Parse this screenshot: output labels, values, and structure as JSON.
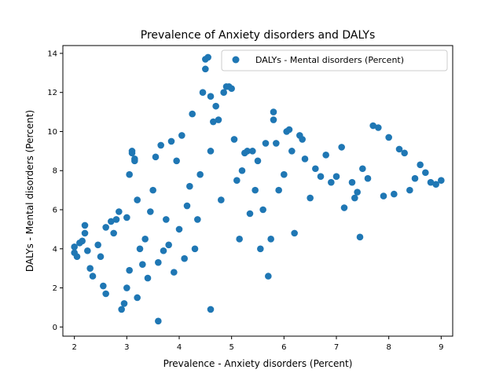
{
  "chart_data": {
    "type": "scatter",
    "title": "Prevalence of Anxiety disorders and DALYs",
    "xlabel": "Prevalence - Anxiety disorders (Percent)",
    "ylabel": "DALYs - Mental disorders (Percent)",
    "xlim": [
      1.78,
      9.22
    ],
    "ylim": [
      -0.47,
      14.4
    ],
    "xticks": [
      2,
      3,
      4,
      5,
      6,
      7,
      8,
      9
    ],
    "yticks": [
      0,
      2,
      4,
      6,
      8,
      10,
      12,
      14
    ],
    "grid": false,
    "legend_position": "top-right",
    "marker_color": "#1f77b4",
    "series": [
      {
        "name": "DALYs - Mental disorders (Percent)",
        "color": "#1f77b4",
        "points": [
          [
            2.0,
            3.8
          ],
          [
            2.0,
            4.1
          ],
          [
            2.05,
            3.6
          ],
          [
            2.1,
            4.3
          ],
          [
            2.15,
            4.4
          ],
          [
            2.2,
            5.2
          ],
          [
            2.2,
            4.8
          ],
          [
            2.25,
            3.9
          ],
          [
            2.3,
            3.0
          ],
          [
            2.35,
            2.6
          ],
          [
            2.45,
            4.2
          ],
          [
            2.5,
            3.6
          ],
          [
            2.55,
            2.1
          ],
          [
            2.6,
            1.7
          ],
          [
            2.6,
            5.1
          ],
          [
            2.7,
            5.4
          ],
          [
            2.75,
            4.8
          ],
          [
            2.8,
            5.5
          ],
          [
            2.85,
            5.9
          ],
          [
            2.9,
            0.9
          ],
          [
            2.95,
            1.2
          ],
          [
            3.0,
            5.6
          ],
          [
            3.0,
            2.0
          ],
          [
            3.05,
            2.9
          ],
          [
            3.05,
            7.8
          ],
          [
            3.1,
            8.9
          ],
          [
            3.1,
            9.0
          ],
          [
            3.15,
            8.6
          ],
          [
            3.15,
            8.5
          ],
          [
            3.2,
            6.5
          ],
          [
            3.2,
            1.5
          ],
          [
            3.25,
            4.0
          ],
          [
            3.3,
            3.2
          ],
          [
            3.35,
            4.5
          ],
          [
            3.4,
            2.5
          ],
          [
            3.45,
            5.9
          ],
          [
            3.5,
            7.0
          ],
          [
            3.55,
            8.7
          ],
          [
            3.6,
            0.3
          ],
          [
            3.6,
            3.3
          ],
          [
            3.65,
            9.3
          ],
          [
            3.7,
            3.9
          ],
          [
            3.75,
            5.5
          ],
          [
            3.8,
            4.2
          ],
          [
            3.85,
            9.5
          ],
          [
            3.9,
            2.8
          ],
          [
            3.95,
            8.5
          ],
          [
            4.0,
            5.0
          ],
          [
            4.05,
            9.8
          ],
          [
            4.1,
            3.5
          ],
          [
            4.15,
            6.2
          ],
          [
            4.2,
            7.2
          ],
          [
            4.25,
            10.9
          ],
          [
            4.3,
            4.0
          ],
          [
            4.35,
            5.5
          ],
          [
            4.4,
            7.8
          ],
          [
            4.45,
            12.0
          ],
          [
            4.5,
            13.2
          ],
          [
            4.5,
            13.7
          ],
          [
            4.55,
            13.8
          ],
          [
            4.6,
            11.8
          ],
          [
            4.6,
            9.0
          ],
          [
            4.6,
            0.9
          ],
          [
            4.65,
            10.5
          ],
          [
            4.7,
            11.3
          ],
          [
            4.75,
            10.6
          ],
          [
            4.8,
            6.5
          ],
          [
            4.85,
            12.0
          ],
          [
            4.9,
            12.3
          ],
          [
            4.95,
            12.3
          ],
          [
            5.0,
            12.2
          ],
          [
            5.05,
            9.6
          ],
          [
            5.1,
            7.5
          ],
          [
            5.15,
            4.5
          ],
          [
            5.2,
            8.0
          ],
          [
            5.25,
            8.9
          ],
          [
            5.3,
            9.0
          ],
          [
            5.35,
            5.8
          ],
          [
            5.4,
            9.0
          ],
          [
            5.45,
            7.0
          ],
          [
            5.5,
            8.5
          ],
          [
            5.55,
            4.0
          ],
          [
            5.6,
            6.0
          ],
          [
            5.65,
            9.4
          ],
          [
            5.7,
            2.6
          ],
          [
            5.75,
            4.5
          ],
          [
            5.8,
            10.6
          ],
          [
            5.8,
            11.0
          ],
          [
            5.85,
            9.4
          ],
          [
            5.9,
            7.0
          ],
          [
            6.0,
            7.8
          ],
          [
            6.05,
            10.0
          ],
          [
            6.1,
            10.1
          ],
          [
            6.15,
            9.0
          ],
          [
            6.2,
            4.8
          ],
          [
            6.3,
            9.8
          ],
          [
            6.35,
            9.6
          ],
          [
            6.4,
            8.6
          ],
          [
            6.5,
            6.6
          ],
          [
            6.6,
            8.1
          ],
          [
            6.7,
            7.7
          ],
          [
            6.8,
            8.8
          ],
          [
            6.9,
            7.4
          ],
          [
            7.0,
            7.7
          ],
          [
            7.1,
            9.2
          ],
          [
            7.15,
            6.1
          ],
          [
            7.3,
            7.4
          ],
          [
            7.35,
            6.6
          ],
          [
            7.4,
            6.9
          ],
          [
            7.45,
            4.6
          ],
          [
            7.5,
            8.1
          ],
          [
            7.6,
            7.6
          ],
          [
            7.7,
            10.3
          ],
          [
            7.8,
            10.2
          ],
          [
            7.9,
            6.7
          ],
          [
            8.0,
            9.7
          ],
          [
            8.1,
            6.8
          ],
          [
            8.2,
            9.1
          ],
          [
            8.3,
            8.9
          ],
          [
            8.4,
            7.0
          ],
          [
            8.5,
            7.6
          ],
          [
            8.6,
            8.3
          ],
          [
            8.7,
            7.9
          ],
          [
            8.8,
            7.4
          ],
          [
            8.9,
            7.3
          ],
          [
            9.0,
            7.5
          ]
        ]
      }
    ]
  }
}
